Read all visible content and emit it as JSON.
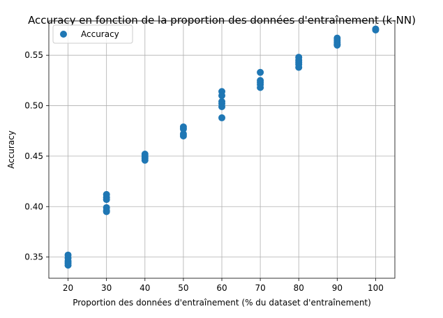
{
  "chart_data": {
    "type": "scatter",
    "title": "Accuracy en fonction de la proportion des données d'entraînement (k-NN)",
    "xlabel": "Proportion des données d'entraînement (% du dataset d'entraînement)",
    "ylabel": "Accuracy",
    "xlim": [
      15,
      105
    ],
    "ylim": [
      0.329,
      0.584
    ],
    "x_ticks": [
      20,
      30,
      40,
      50,
      60,
      70,
      80,
      90,
      100
    ],
    "y_ticks": [
      0.35,
      0.4,
      0.45,
      0.5,
      0.55
    ],
    "y_tick_labels": [
      "0.35",
      "0.40",
      "0.45",
      "0.50",
      "0.55"
    ],
    "grid": true,
    "legend_position": "top-left",
    "colors": {
      "marker": "#1f77b4",
      "grid": "#b0b0b0"
    },
    "series": [
      {
        "name": "Accuracy",
        "points": [
          [
            20,
            0.352
          ],
          [
            20,
            0.349
          ],
          [
            20,
            0.346
          ],
          [
            20,
            0.344
          ],
          [
            20,
            0.342
          ],
          [
            30,
            0.412
          ],
          [
            30,
            0.409
          ],
          [
            30,
            0.407
          ],
          [
            30,
            0.399
          ],
          [
            30,
            0.396
          ],
          [
            30,
            0.395
          ],
          [
            40,
            0.452
          ],
          [
            40,
            0.45
          ],
          [
            40,
            0.448
          ],
          [
            40,
            0.446
          ],
          [
            50,
            0.479
          ],
          [
            50,
            0.477
          ],
          [
            50,
            0.472
          ],
          [
            50,
            0.47
          ],
          [
            60,
            0.514
          ],
          [
            60,
            0.51
          ],
          [
            60,
            0.504
          ],
          [
            60,
            0.502
          ],
          [
            60,
            0.499
          ],
          [
            60,
            0.488
          ],
          [
            70,
            0.533
          ],
          [
            70,
            0.525
          ],
          [
            70,
            0.523
          ],
          [
            70,
            0.521
          ],
          [
            70,
            0.518
          ],
          [
            80,
            0.548
          ],
          [
            80,
            0.545
          ],
          [
            80,
            0.543
          ],
          [
            80,
            0.541
          ],
          [
            80,
            0.538
          ],
          [
            90,
            0.567
          ],
          [
            90,
            0.565
          ],
          [
            90,
            0.563
          ],
          [
            90,
            0.561
          ],
          [
            90,
            0.56
          ],
          [
            100,
            0.576
          ],
          [
            100,
            0.575
          ]
        ]
      }
    ]
  }
}
